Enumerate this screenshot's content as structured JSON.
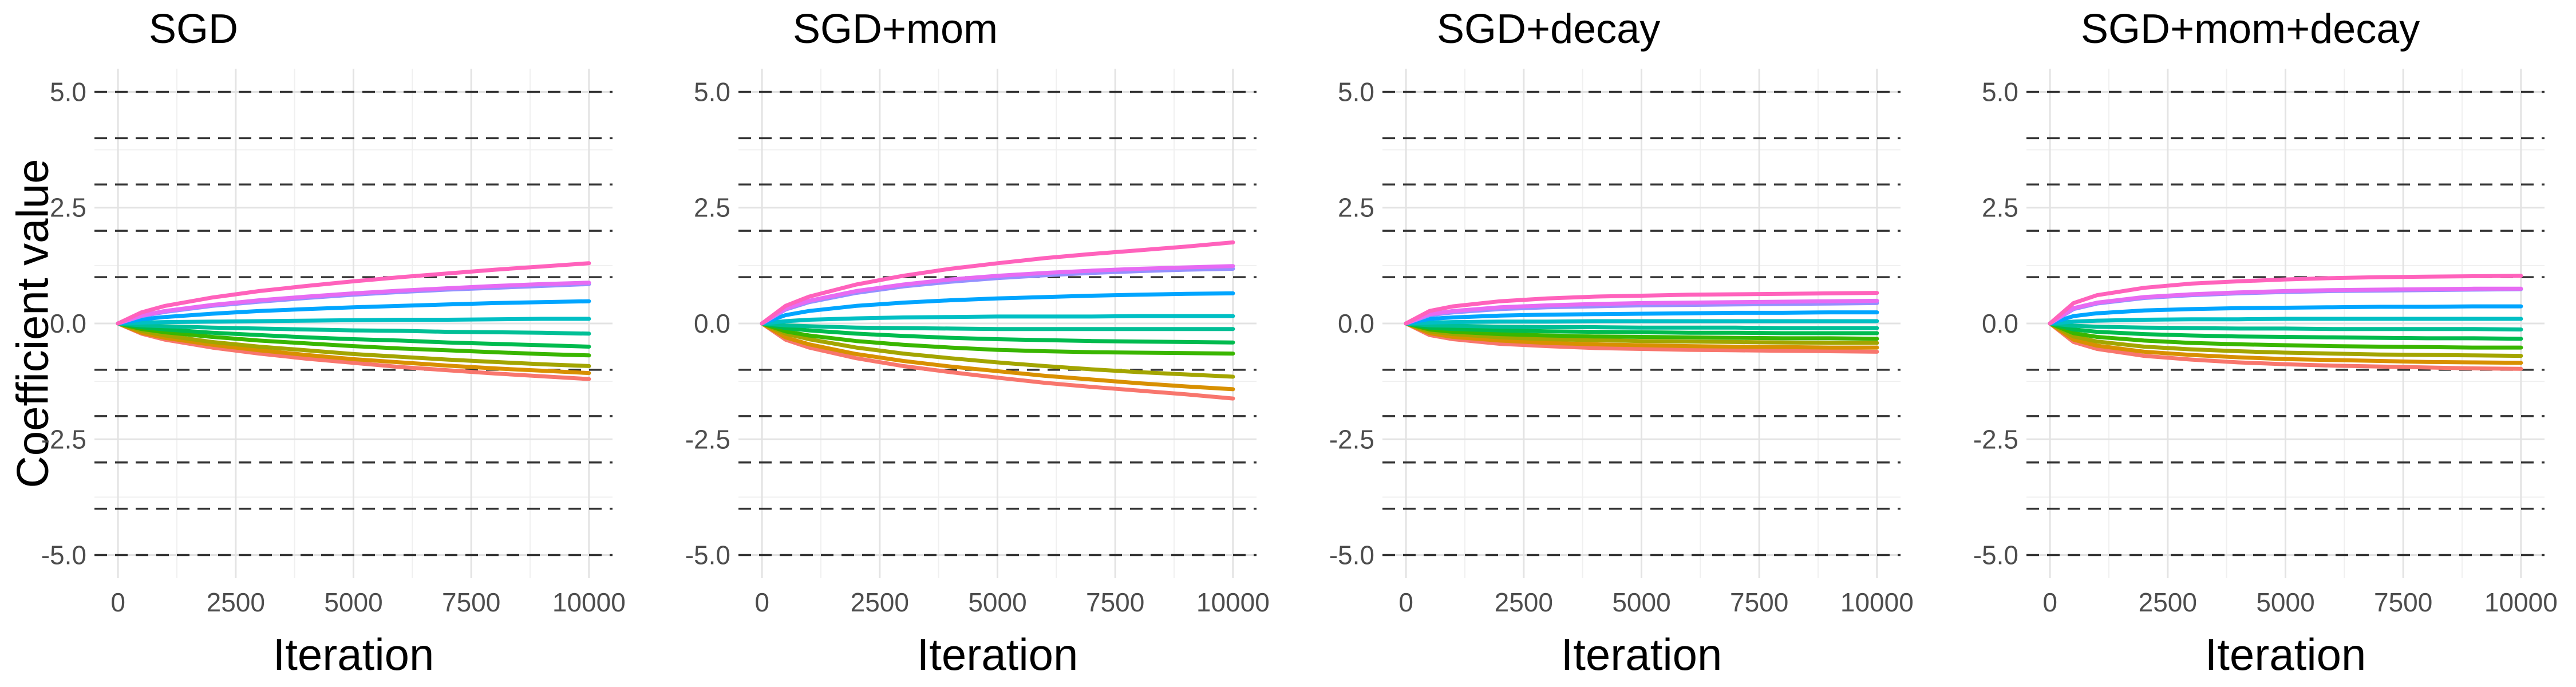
{
  "chart_data": {
    "ylabel": "Coefficient value",
    "panels": [
      {
        "title": "SGD",
        "type": "line",
        "xlabel": "Iteration",
        "xlim": [
          0,
          10000
        ],
        "ylim": [
          -5.0,
          5.0
        ],
        "x_ticks": [
          0,
          2500,
          5000,
          7500,
          10000
        ],
        "x_tick_labels": [
          "0",
          "2500",
          "5000",
          "7500",
          "10000"
        ],
        "y_ticks": [
          -5.0,
          -2.5,
          0.0,
          2.5,
          5.0
        ],
        "y_tick_labels": [
          "-5.0",
          "-2.5",
          "0.0",
          "2.5",
          "5.0"
        ],
        "reference_lines_y": [
          -5,
          -4,
          -3,
          -2,
          -1,
          1,
          2,
          3,
          4,
          5
        ],
        "grid": true,
        "x": [
          0,
          500,
          1000,
          2000,
          3000,
          4000,
          5000,
          6000,
          7000,
          8000,
          9000,
          10000
        ],
        "series": [
          {
            "color": "#F8766D",
            "values": [
              0,
              -0.22,
              -0.35,
              -0.52,
              -0.65,
              -0.76,
              -0.85,
              -0.94,
              -1.01,
              -1.08,
              -1.14,
              -1.2
            ]
          },
          {
            "color": "#D89000",
            "values": [
              0,
              -0.2,
              -0.31,
              -0.46,
              -0.58,
              -0.68,
              -0.77,
              -0.84,
              -0.91,
              -0.97,
              -1.02,
              -1.07
            ]
          },
          {
            "color": "#A3A500",
            "values": [
              0,
              -0.16,
              -0.26,
              -0.4,
              -0.5,
              -0.58,
              -0.66,
              -0.72,
              -0.78,
              -0.83,
              -0.88,
              -0.92
            ]
          },
          {
            "color": "#39B600",
            "values": [
              0,
              -0.12,
              -0.19,
              -0.29,
              -0.37,
              -0.43,
              -0.49,
              -0.54,
              -0.58,
              -0.62,
              -0.66,
              -0.69
            ]
          },
          {
            "color": "#00BB4E",
            "values": [
              0,
              -0.08,
              -0.13,
              -0.2,
              -0.25,
              -0.3,
              -0.34,
              -0.37,
              -0.41,
              -0.44,
              -0.47,
              -0.5
            ]
          },
          {
            "color": "#00BF96",
            "values": [
              0,
              -0.04,
              -0.06,
              -0.09,
              -0.11,
              -0.13,
              -0.15,
              -0.16,
              -0.18,
              -0.19,
              -0.2,
              -0.22
            ]
          },
          {
            "color": "#00BFC4",
            "values": [
              0,
              0.02,
              0.03,
              0.04,
              0.05,
              0.06,
              0.07,
              0.08,
              0.08,
              0.09,
              0.1,
              0.1
            ]
          },
          {
            "color": "#00A5FF",
            "values": [
              0,
              0.09,
              0.14,
              0.21,
              0.27,
              0.31,
              0.35,
              0.38,
              0.41,
              0.44,
              0.46,
              0.48
            ]
          },
          {
            "color": "#9590FF",
            "values": [
              0,
              0.16,
              0.25,
              0.38,
              0.47,
              0.55,
              0.62,
              0.68,
              0.73,
              0.77,
              0.81,
              0.85
            ]
          },
          {
            "color": "#E76BF3",
            "values": [
              0,
              0.17,
              0.27,
              0.4,
              0.5,
              0.58,
              0.65,
              0.71,
              0.76,
              0.81,
              0.85,
              0.88
            ]
          },
          {
            "color": "#FF62BC",
            "values": [
              0,
              0.24,
              0.38,
              0.56,
              0.7,
              0.81,
              0.91,
              1.0,
              1.08,
              1.16,
              1.23,
              1.3
            ]
          }
        ]
      },
      {
        "title": "SGD+mom",
        "type": "line",
        "xlabel": "Iteration",
        "xlim": [
          0,
          10000
        ],
        "ylim": [
          -5.0,
          5.0
        ],
        "x_ticks": [
          0,
          2500,
          5000,
          7500,
          10000
        ],
        "x_tick_labels": [
          "0",
          "2500",
          "5000",
          "7500",
          "10000"
        ],
        "y_ticks": [
          -5.0,
          -2.5,
          0.0,
          2.5,
          5.0
        ],
        "y_tick_labels": [
          "-5.0",
          "-2.5",
          "0.0",
          "2.5",
          "5.0"
        ],
        "reference_lines_y": [
          -5,
          -4,
          -3,
          -2,
          -1,
          1,
          2,
          3,
          4,
          5
        ],
        "grid": true,
        "x": [
          0,
          500,
          1000,
          2000,
          3000,
          4000,
          5000,
          6000,
          7000,
          8000,
          9000,
          10000
        ],
        "series": [
          {
            "color": "#F8766D",
            "values": [
              0,
              -0.35,
              -0.52,
              -0.75,
              -0.92,
              -1.05,
              -1.17,
              -1.28,
              -1.37,
              -1.45,
              -1.53,
              -1.62
            ]
          },
          {
            "color": "#D89000",
            "values": [
              0,
              -0.3,
              -0.45,
              -0.66,
              -0.81,
              -0.93,
              -1.03,
              -1.13,
              -1.21,
              -1.29,
              -1.36,
              -1.42
            ]
          },
          {
            "color": "#A3A500",
            "values": [
              0,
              -0.22,
              -0.34,
              -0.52,
              -0.65,
              -0.75,
              -0.84,
              -0.92,
              -0.99,
              -1.05,
              -1.1,
              -1.15
            ]
          },
          {
            "color": "#39B600",
            "values": [
              0,
              -0.17,
              -0.26,
              -0.38,
              -0.46,
              -0.52,
              -0.57,
              -0.6,
              -0.62,
              -0.63,
              -0.64,
              -0.65
            ]
          },
          {
            "color": "#00BB4E",
            "values": [
              0,
              -0.1,
              -0.15,
              -0.22,
              -0.27,
              -0.31,
              -0.34,
              -0.36,
              -0.38,
              -0.39,
              -0.4,
              -0.41
            ]
          },
          {
            "color": "#00BF96",
            "values": [
              0,
              -0.04,
              -0.06,
              -0.09,
              -0.1,
              -0.11,
              -0.12,
              -0.12,
              -0.12,
              -0.12,
              -0.12,
              -0.12
            ]
          },
          {
            "color": "#00BFC4",
            "values": [
              0,
              0.05,
              0.08,
              0.11,
              0.13,
              0.14,
              0.15,
              0.15,
              0.15,
              0.16,
              0.16,
              0.16
            ]
          },
          {
            "color": "#00A5FF",
            "values": [
              0,
              0.18,
              0.27,
              0.38,
              0.45,
              0.5,
              0.54,
              0.57,
              0.6,
              0.62,
              0.64,
              0.65
            ]
          },
          {
            "color": "#9590FF",
            "values": [
              0,
              0.3,
              0.46,
              0.66,
              0.8,
              0.9,
              0.98,
              1.04,
              1.09,
              1.13,
              1.16,
              1.18
            ]
          },
          {
            "color": "#E76BF3",
            "values": [
              0,
              0.32,
              0.49,
              0.7,
              0.84,
              0.95,
              1.03,
              1.09,
              1.14,
              1.18,
              1.21,
              1.24
            ]
          },
          {
            "color": "#FF62BC",
            "values": [
              0,
              0.38,
              0.58,
              0.84,
              1.03,
              1.18,
              1.3,
              1.41,
              1.5,
              1.58,
              1.66,
              1.75
            ]
          }
        ]
      },
      {
        "title": "SGD+decay",
        "type": "line",
        "xlabel": "Iteration",
        "xlim": [
          0,
          10000
        ],
        "ylim": [
          -5.0,
          5.0
        ],
        "x_ticks": [
          0,
          2500,
          5000,
          7500,
          10000
        ],
        "x_tick_labels": [
          "0",
          "2500",
          "5000",
          "7500",
          "10000"
        ],
        "y_ticks": [
          -5.0,
          -2.5,
          0.0,
          2.5,
          5.0
        ],
        "y_tick_labels": [
          "-5.0",
          "-2.5",
          "0.0",
          "2.5",
          "5.0"
        ],
        "reference_lines_y": [
          -5,
          -4,
          -3,
          -2,
          -1,
          1,
          2,
          3,
          4,
          5
        ],
        "grid": true,
        "x": [
          0,
          500,
          1000,
          2000,
          3000,
          4000,
          5000,
          6000,
          7000,
          8000,
          9000,
          10000
        ],
        "series": [
          {
            "color": "#F8766D",
            "values": [
              0,
              -0.25,
              -0.34,
              -0.44,
              -0.49,
              -0.53,
              -0.55,
              -0.57,
              -0.58,
              -0.59,
              -0.6,
              -0.61
            ]
          },
          {
            "color": "#D89000",
            "values": [
              0,
              -0.21,
              -0.29,
              -0.37,
              -0.42,
              -0.45,
              -0.47,
              -0.49,
              -0.5,
              -0.51,
              -0.52,
              -0.52
            ]
          },
          {
            "color": "#A3A500",
            "values": [
              0,
              -0.17,
              -0.23,
              -0.3,
              -0.34,
              -0.36,
              -0.38,
              -0.39,
              -0.4,
              -0.41,
              -0.42,
              -0.42
            ]
          },
          {
            "color": "#39B600",
            "values": [
              0,
              -0.13,
              -0.18,
              -0.23,
              -0.26,
              -0.28,
              -0.29,
              -0.3,
              -0.31,
              -0.32,
              -0.32,
              -0.33
            ]
          },
          {
            "color": "#00BB4E",
            "values": [
              0,
              -0.09,
              -0.12,
              -0.15,
              -0.17,
              -0.18,
              -0.19,
              -0.2,
              -0.2,
              -0.21,
              -0.21,
              -0.21
            ]
          },
          {
            "color": "#00BF96",
            "values": [
              0,
              -0.04,
              -0.05,
              -0.07,
              -0.08,
              -0.08,
              -0.09,
              -0.09,
              -0.09,
              -0.1,
              -0.1,
              -0.1
            ]
          },
          {
            "color": "#00BFC4",
            "values": [
              0,
              0.02,
              0.03,
              0.04,
              0.04,
              0.05,
              0.05,
              0.05,
              0.05,
              0.05,
              0.05,
              0.05
            ]
          },
          {
            "color": "#00A5FF",
            "values": [
              0,
              0.1,
              0.13,
              0.17,
              0.19,
              0.2,
              0.21,
              0.22,
              0.23,
              0.23,
              0.24,
              0.24
            ]
          },
          {
            "color": "#9590FF",
            "values": [
              0,
              0.18,
              0.24,
              0.31,
              0.35,
              0.37,
              0.39,
              0.4,
              0.41,
              0.42,
              0.43,
              0.44
            ]
          },
          {
            "color": "#E76BF3",
            "values": [
              0,
              0.2,
              0.27,
              0.35,
              0.39,
              0.42,
              0.44,
              0.45,
              0.46,
              0.47,
              0.48,
              0.49
            ]
          },
          {
            "color": "#FF62BC",
            "values": [
              0,
              0.27,
              0.37,
              0.48,
              0.54,
              0.58,
              0.6,
              0.62,
              0.63,
              0.64,
              0.65,
              0.66
            ]
          }
        ]
      },
      {
        "title": "SGD+mom+decay",
        "type": "line",
        "xlabel": "Iteration",
        "xlim": [
          0,
          10000
        ],
        "ylim": [
          -5.0,
          5.0
        ],
        "x_ticks": [
          0,
          2500,
          5000,
          7500,
          10000
        ],
        "x_tick_labels": [
          "0",
          "2500",
          "5000",
          "7500",
          "10000"
        ],
        "y_ticks": [
          -5.0,
          -2.5,
          0.0,
          2.5,
          5.0
        ],
        "y_tick_labels": [
          "-5.0",
          "-2.5",
          "0.0",
          "2.5",
          "5.0"
        ],
        "reference_lines_y": [
          -5,
          -4,
          -3,
          -2,
          -1,
          1,
          2,
          3,
          4,
          5
        ],
        "grid": true,
        "x": [
          0,
          500,
          1000,
          2000,
          3000,
          4000,
          5000,
          6000,
          7000,
          8000,
          9000,
          10000
        ],
        "series": [
          {
            "color": "#F8766D",
            "values": [
              0,
              -0.4,
              -0.55,
              -0.7,
              -0.78,
              -0.84,
              -0.88,
              -0.91,
              -0.93,
              -0.95,
              -0.97,
              -0.98
            ]
          },
          {
            "color": "#D89000",
            "values": [
              0,
              -0.35,
              -0.48,
              -0.61,
              -0.68,
              -0.73,
              -0.77,
              -0.79,
              -0.81,
              -0.83,
              -0.84,
              -0.85
            ]
          },
          {
            "color": "#A3A500",
            "values": [
              0,
              -0.28,
              -0.39,
              -0.5,
              -0.56,
              -0.6,
              -0.63,
              -0.65,
              -0.67,
              -0.68,
              -0.69,
              -0.7
            ]
          },
          {
            "color": "#39B600",
            "values": [
              0,
              -0.21,
              -0.29,
              -0.37,
              -0.42,
              -0.45,
              -0.47,
              -0.49,
              -0.5,
              -0.51,
              -0.52,
              -0.52
            ]
          },
          {
            "color": "#00BB4E",
            "values": [
              0,
              -0.13,
              -0.18,
              -0.23,
              -0.26,
              -0.28,
              -0.29,
              -0.3,
              -0.31,
              -0.32,
              -0.32,
              -0.33
            ]
          },
          {
            "color": "#00BF96",
            "values": [
              0,
              -0.05,
              -0.07,
              -0.09,
              -0.1,
              -0.11,
              -0.11,
              -0.12,
              -0.12,
              -0.12,
              -0.12,
              -0.13
            ]
          },
          {
            "color": "#00BFC4",
            "values": [
              0,
              0.04,
              0.06,
              0.08,
              0.09,
              0.09,
              0.1,
              0.1,
              0.1,
              0.1,
              0.1,
              0.1
            ]
          },
          {
            "color": "#00A5FF",
            "values": [
              0,
              0.16,
              0.22,
              0.28,
              0.31,
              0.33,
              0.34,
              0.35,
              0.36,
              0.36,
              0.37,
              0.37
            ]
          },
          {
            "color": "#9590FF",
            "values": [
              0,
              0.31,
              0.43,
              0.55,
              0.61,
              0.65,
              0.68,
              0.7,
              0.71,
              0.72,
              0.73,
              0.74
            ]
          },
          {
            "color": "#E76BF3",
            "values": [
              0,
              0.33,
              0.45,
              0.57,
              0.63,
              0.67,
              0.7,
              0.72,
              0.73,
              0.74,
              0.75,
              0.75
            ]
          },
          {
            "color": "#FF62BC",
            "values": [
              0,
              0.44,
              0.61,
              0.77,
              0.86,
              0.91,
              0.95,
              0.98,
              1.0,
              1.01,
              1.02,
              1.03
            ]
          }
        ]
      }
    ]
  }
}
